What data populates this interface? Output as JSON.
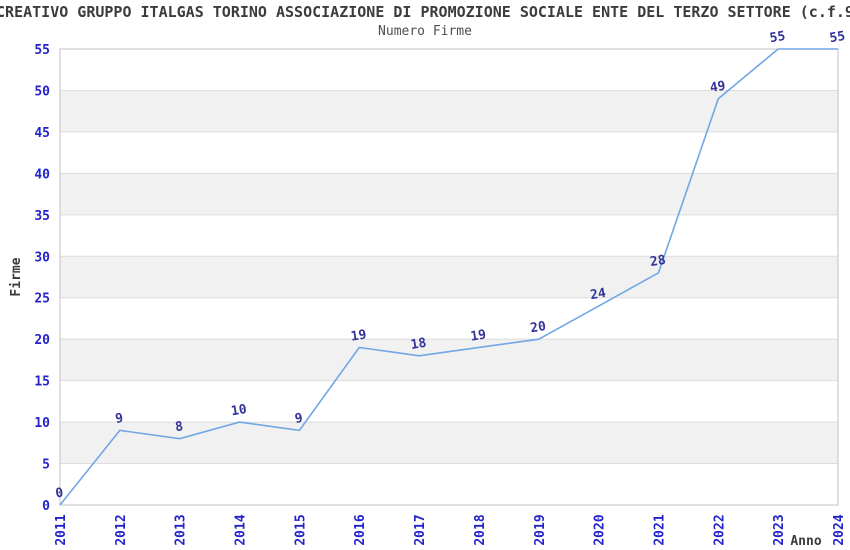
{
  "header": {
    "title": "CREATIVO GRUPPO ITALGAS TORINO ASSOCIAZIONE DI PROMOZIONE SOCIALE ENTE DEL TERZO SETTORE (c.f.9",
    "subtitle": "Numero Firme"
  },
  "chart_data": {
    "type": "line",
    "title": "Numero Firme",
    "x": [
      2011,
      2012,
      2013,
      2014,
      2015,
      2016,
      2017,
      2018,
      2019,
      2020,
      2021,
      2022,
      2023,
      2024
    ],
    "values": [
      0,
      9,
      8,
      10,
      9,
      19,
      18,
      19,
      20,
      24,
      28,
      49,
      55,
      55
    ],
    "xlabel": "Anno",
    "ylabel": "Firme",
    "ylim": [
      0,
      55
    ],
    "ytick_step": 5,
    "yticks": [
      0,
      5,
      10,
      15,
      20,
      25,
      30,
      35,
      40,
      45,
      50,
      55
    ],
    "grid": "horizontal gridlines with alternating gray bands every 5 units",
    "legend": "none",
    "markers": "none",
    "data_labels_shown": true,
    "colors": {
      "line": "#72a7e5",
      "tick_labels": "#2323cc",
      "data_labels": "#333399",
      "band": "#f1f1f1",
      "gridline": "#dddddd",
      "frame": "#c3c3c3",
      "axis_title": "#3c3c3c"
    }
  }
}
